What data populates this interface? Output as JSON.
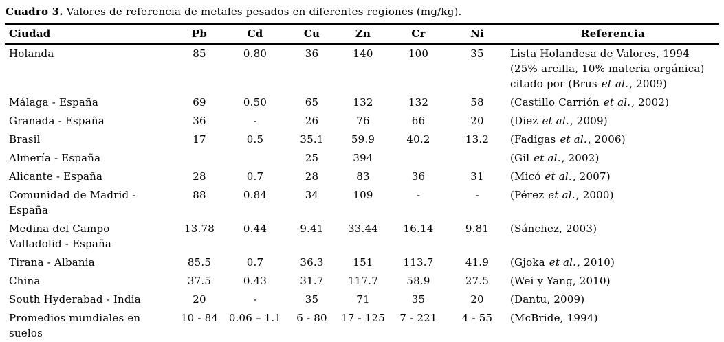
{
  "title": {
    "prefix": "Cuadro 3.",
    "text": " Valores de referencia de metales pesados en diferentes regiones (mg/kg)."
  },
  "table": {
    "headers": {
      "ciudad": "Ciudad",
      "pb": "Pb",
      "cd": "Cd",
      "cu": "Cu",
      "zn": "Zn",
      "cr": "Cr",
      "ni": "Ni",
      "referencia": "Referencia"
    },
    "rows": [
      {
        "ciudad": "Holanda",
        "pb": "85",
        "cd": "0.80",
        "cu": "36",
        "zn": "140",
        "cr": "100",
        "ni": "35",
        "ref_pre": "Lista Holandesa de Valores, 1994\n(25% arcilla, 10% materia orgánica)\ncitado por (Brus",
        "ref_etal": "et al.",
        "ref_post": ", 2009)"
      },
      {
        "ciudad": "Málaga - España",
        "pb": "69",
        "cd": "0.50",
        "cu": "65",
        "zn": "132",
        "cr": "132",
        "ni": "58",
        "ref_pre": "(Castillo Carrión",
        "ref_etal": "et al.",
        "ref_post": ", 2002)"
      },
      {
        "ciudad": "Granada - España",
        "pb": "36",
        "cd": "-",
        "cu": "26",
        "zn": "76",
        "cr": "66",
        "ni": "20",
        "ref_pre": "(Diez",
        "ref_etal": "et al.",
        "ref_post": ", 2009)"
      },
      {
        "ciudad": "Brasil",
        "pb": "17",
        "cd": "0.5",
        "cu": "35.1",
        "zn": "59.9",
        "cr": "40.2",
        "ni": "13.2",
        "ref_pre": "(Fadigas",
        "ref_etal": "et al.",
        "ref_post": ", 2006)"
      },
      {
        "ciudad": "Almería - España",
        "pb": "",
        "cd": "",
        "cu": "25",
        "zn": "394",
        "cr": "",
        "ni": "",
        "ref_pre": "(Gil",
        "ref_etal": "et al.",
        "ref_post": ", 2002)"
      },
      {
        "ciudad": "Alicante - España",
        "pb": "28",
        "cd": "0.7",
        "cu": "28",
        "zn": "83",
        "cr": "36",
        "ni": "31",
        "ref_pre": "(Micó",
        "ref_etal": "et al.",
        "ref_post": ", 2007)"
      },
      {
        "ciudad": "Comunidad de Madrid -\nEspaña",
        "pb": "88",
        "cd": "0.84",
        "cu": "34",
        "zn": "109",
        "cr": "-",
        "ni": "-",
        "ref_pre": "(Pérez",
        "ref_etal": "et al.",
        "ref_post": ", 2000)"
      },
      {
        "ciudad": "Medina del Campo\nValladolid - España",
        "pb": "13.78",
        "cd": "0.44",
        "cu": "9.41",
        "zn": "33.44",
        "cr": "16.14",
        "ni": "9.81",
        "ref_pre": "(Sánchez, 2003)",
        "ref_etal": "",
        "ref_post": ""
      },
      {
        "ciudad": "Tirana - Albania",
        "pb": "85.5",
        "cd": "0.7",
        "cu": "36.3",
        "zn": "151",
        "cr": "113.7",
        "ni": "41.9",
        "ref_pre": "(Gjoka",
        "ref_etal": "et al.",
        "ref_post": ", 2010)"
      },
      {
        "ciudad": "China",
        "pb": "37.5",
        "cd": "0.43",
        "cu": "31.7",
        "zn": "117.7",
        "cr": "58.9",
        "ni": "27.5",
        "ref_pre": "(Wei y Yang, 2010)",
        "ref_etal": "",
        "ref_post": ""
      },
      {
        "ciudad": "South Hyderabad - India",
        "pb": "20",
        "cd": "-",
        "cu": "35",
        "zn": "71",
        "cr": "35",
        "ni": "20",
        "ref_pre": "(Dantu, 2009)",
        "ref_etal": "",
        "ref_post": ""
      },
      {
        "ciudad": "Promedios mundiales en\nsuelos",
        "pb": "10 - 84",
        "cd": "0.06 – 1.1",
        "cu": "6 - 80",
        "zn": "17 - 125",
        "cr": "7 - 221",
        "ni": "4 - 55",
        "ref_pre": "(McBride, 1994)",
        "ref_etal": "",
        "ref_post": ""
      }
    ]
  }
}
